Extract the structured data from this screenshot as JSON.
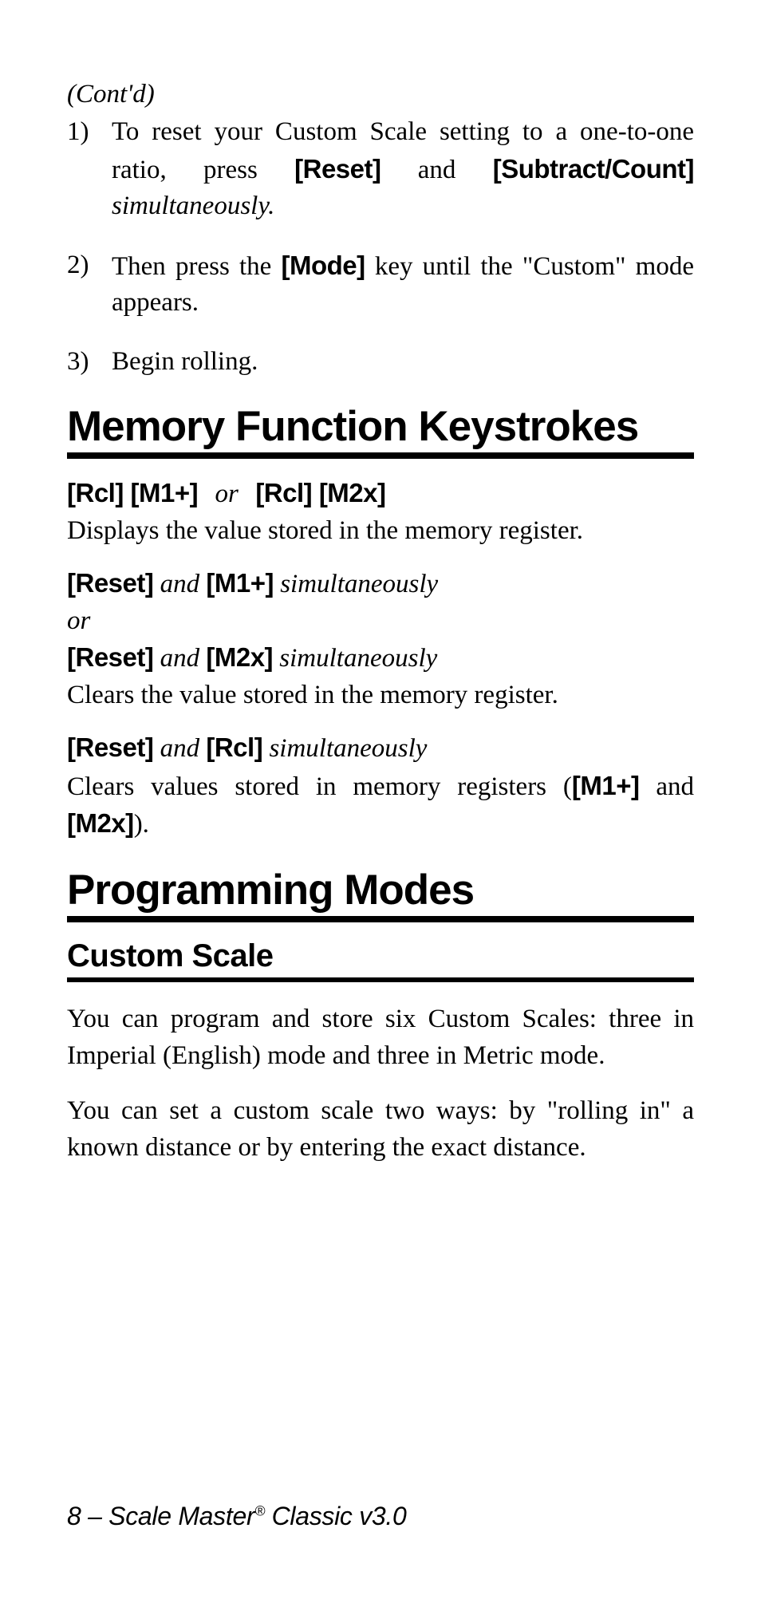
{
  "contd": "(Cont'd)",
  "steps": [
    {
      "num": "1)",
      "pre": "To reset your Custom Scale setting to a one-to-one ratio, press ",
      "k1": "[Reset]",
      "mid1": " and ",
      "k2": "[Subtract/Count]",
      "post": " simultaneously."
    },
    {
      "num": "2)",
      "pre": "Then press the ",
      "k1": "[Mode]",
      "post": " key until the \"Custom\" mode appears."
    },
    {
      "num": "3)",
      "pre": "Begin rolling."
    }
  ],
  "h_memory": "Memory Function Keystrokes",
  "mem1": {
    "k1": "[Rcl] [M1+]",
    "or": "or",
    "k2": "[Rcl] [M2x]",
    "desc": "Displays the value stored in the memory register."
  },
  "mem2": {
    "line1_k1": "[Reset]",
    "and": "and",
    "line1_k2": "[M1+]",
    "sim": "simultaneously",
    "or": "or",
    "line2_k1": "[Reset]",
    "line2_k2": "[M2x]",
    "desc": "Clears the value stored in the memory register."
  },
  "mem3": {
    "k1": "[Reset]",
    "and": "and",
    "k2": "[Rcl]",
    "sim": "simultaneously",
    "desc_pre": "Clears values stored in memory registers (",
    "dk1": "[M1+]",
    "desc_mid": " and ",
    "dk2": "[M2x]",
    "desc_post": ")."
  },
  "h_prog": "Programming Modes",
  "h_custom": "Custom Scale",
  "p1": "You can program and store six Custom Scales: three in Imperial (English) mode and three in Metric mode.",
  "p2": "You can set a custom scale two ways: by \"rolling in\" a known distance or by entering the exact distance.",
  "footer_prefix": "8 – Scale Master",
  "footer_reg": "®",
  "footer_suffix": " Classic v3.0"
}
